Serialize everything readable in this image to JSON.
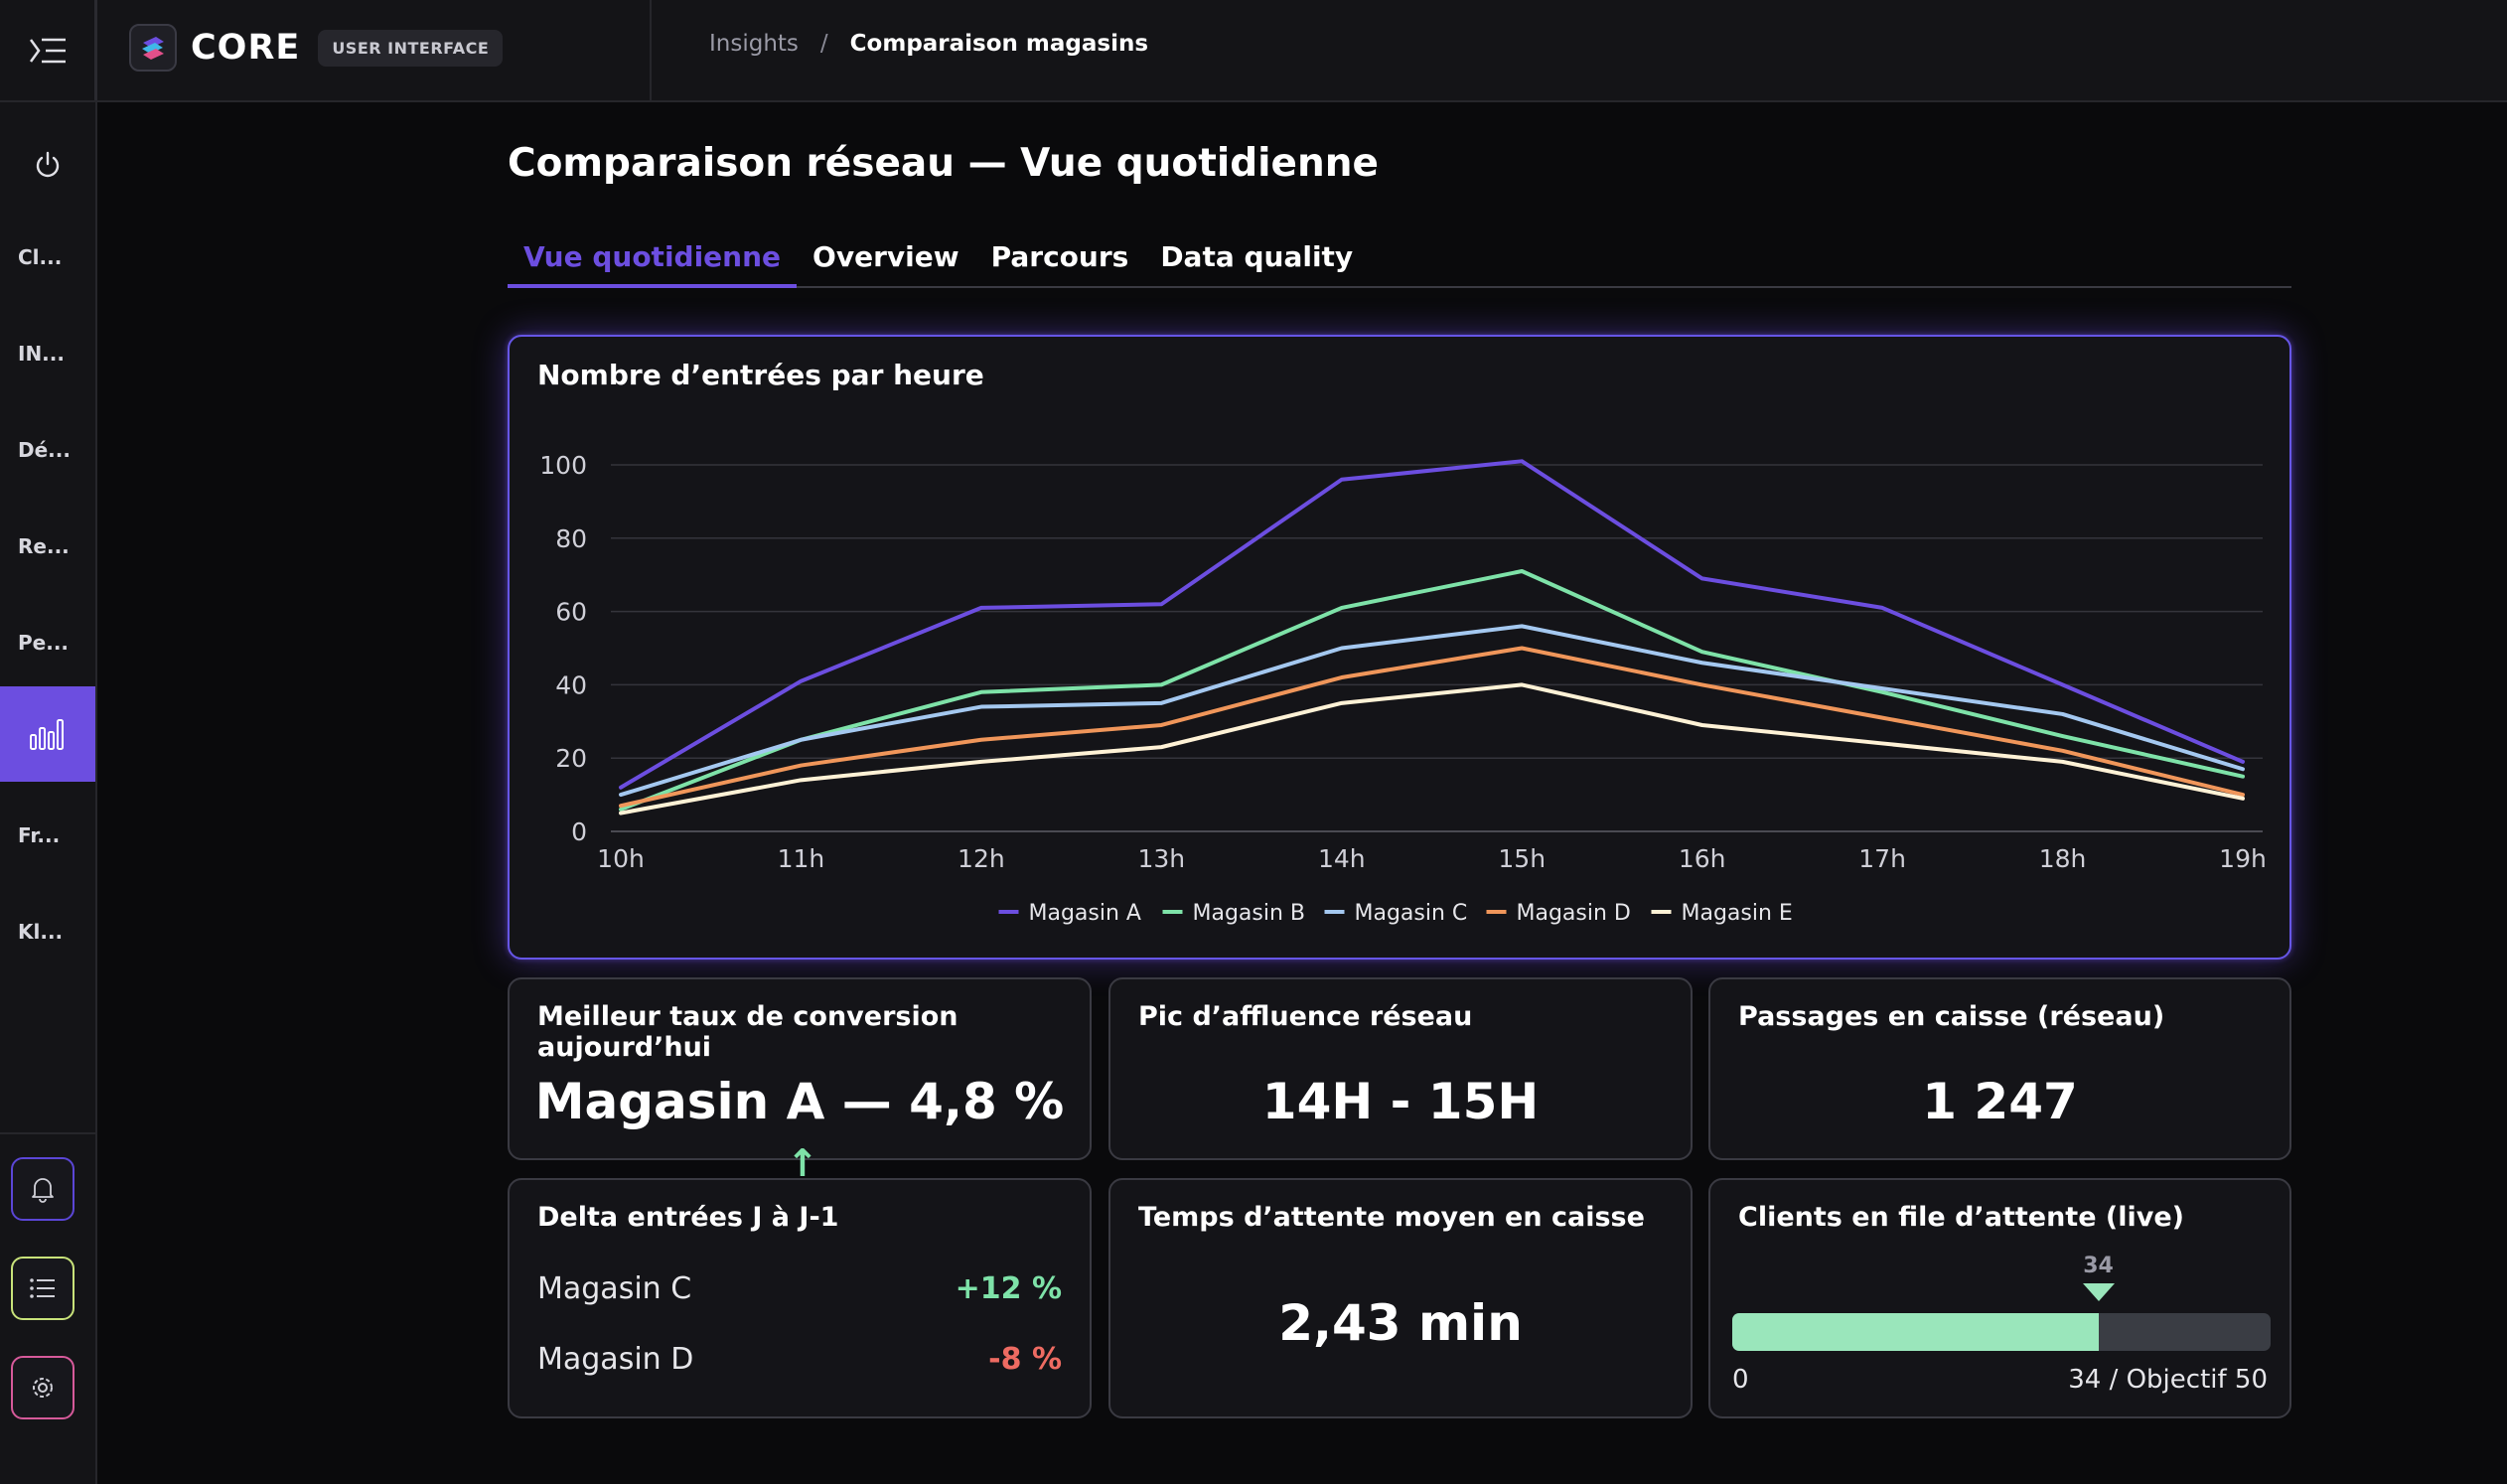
{
  "header": {
    "brand_name": "CORE",
    "brand_badge": "USER INTERFACE",
    "breadcrumb": [
      "Insights",
      "Comparaison magasins"
    ],
    "breadcrumb_separator": "/"
  },
  "sidebar": {
    "items": [
      {
        "label": "Cl...",
        "icon": null
      },
      {
        "label": "IN...",
        "icon": null
      },
      {
        "label": "Dé...",
        "icon": null
      },
      {
        "label": "Re...",
        "icon": null
      },
      {
        "label": "Pe...",
        "icon": null
      },
      {
        "label": "",
        "icon": "bar-chart-icon",
        "active": true
      },
      {
        "label": "Fr...",
        "icon": null
      },
      {
        "label": "Kl...",
        "icon": null
      }
    ],
    "bottom_buttons": [
      {
        "icon": "bell-icon",
        "border": "#5b46d6"
      },
      {
        "icon": "list-icon",
        "border": "#c8e27a"
      },
      {
        "icon": "settings-icon",
        "border": "#d65a9a"
      }
    ]
  },
  "page": {
    "title": "Comparaison réseau — Vue quotidienne",
    "tabs": [
      {
        "label": "Vue quotidienne",
        "active": true
      },
      {
        "label": "Overview"
      },
      {
        "label": "Parcours"
      },
      {
        "label": "Data quality"
      }
    ]
  },
  "chart_card": {
    "title": "Nombre d’entrées par heure"
  },
  "chart_data": {
    "type": "line",
    "title": "Nombre d’entrées par heure",
    "x": [
      "10h",
      "11h",
      "12h",
      "13h",
      "14h",
      "15h",
      "16h",
      "17h",
      "18h",
      "19h"
    ],
    "ylim": [
      0,
      100
    ],
    "yticks": [
      0,
      20,
      40,
      60,
      80,
      100
    ],
    "grid": true,
    "legend": "bottom-center",
    "series": [
      {
        "name": "Magasin A",
        "color": "#6c4ee0",
        "values": [
          12,
          41,
          61,
          62,
          96,
          101,
          69,
          61,
          40,
          19
        ]
      },
      {
        "name": "Magasin B",
        "color": "#7ee2a8",
        "values": [
          6,
          25,
          38,
          40,
          61,
          71,
          49,
          38,
          26,
          15
        ]
      },
      {
        "name": "Magasin C",
        "color": "#a4c8f0",
        "values": [
          10,
          25,
          34,
          35,
          50,
          56,
          46,
          39,
          32,
          17
        ]
      },
      {
        "name": "Magasin D",
        "color": "#f0965a",
        "values": [
          7,
          18,
          25,
          29,
          42,
          50,
          40,
          31,
          22,
          10
        ]
      },
      {
        "name": "Magasin E",
        "color": "#fff2d6",
        "values": [
          5,
          14,
          19,
          23,
          35,
          40,
          29,
          24,
          19,
          9
        ]
      }
    ]
  },
  "kpis": {
    "conversion": {
      "title": "Meilleur taux de conversion aujourd’hui",
      "value": "Magasin A — 4,8 %",
      "trend": "↑"
    },
    "peak": {
      "title": "Pic d’affluence réseau",
      "value": "14H - 15H"
    },
    "checkout": {
      "title": "Passages en caisse (réseau)",
      "value": "1 247"
    },
    "delta": {
      "title": "Delta entrées J à J-1",
      "rows": [
        {
          "store": "Magasin C",
          "value": "+12 %"
        },
        {
          "store": "Magasin D",
          "value": "-8 %"
        }
      ]
    },
    "wait": {
      "title": "Temps d’attente moyen en caisse",
      "value": "2,43 min"
    },
    "queue": {
      "title": "Clients en file d’attente (live)",
      "current": 34,
      "objective": 50,
      "current_label": "34",
      "min_label": "0",
      "max_label": "34 / Objectif 50"
    }
  }
}
